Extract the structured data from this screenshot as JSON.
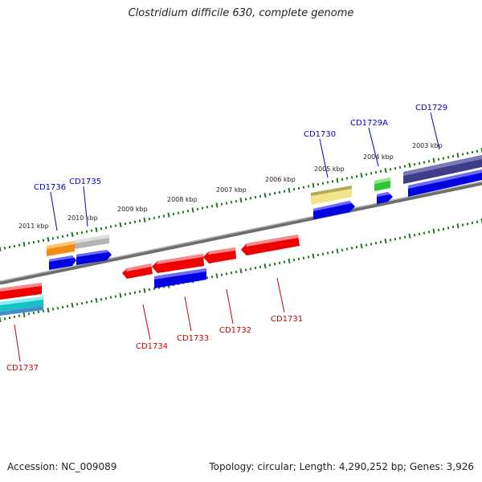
{
  "title": "Clostridium difficile 630, complete genome",
  "footer": {
    "accession": "Accession: NC_009089",
    "summary": "Topology: circular; Length: 4,290,252 bp; Genes: 3,926"
  },
  "colors": {
    "backbone": "#8a8a8a",
    "ruler": "#1e7a1e",
    "label_forward": "#0000cc",
    "label_reverse": "#cc0000"
  },
  "ruler_labels": [
    "2011 kbp",
    "2010 kbp",
    "2009 kbp",
    "2008 kbp",
    "2007 kbp",
    "2006 kbp",
    "2005 kbp",
    "2004 kbp",
    "2003 kbp"
  ],
  "gene_labels_forward": [
    "CD1736",
    "CD1735",
    "CD1730",
    "CD1729A",
    "CD1729"
  ],
  "gene_labels_reverse": [
    "CD1737",
    "CD1734",
    "CD1733",
    "CD1732",
    "CD1731"
  ]
}
